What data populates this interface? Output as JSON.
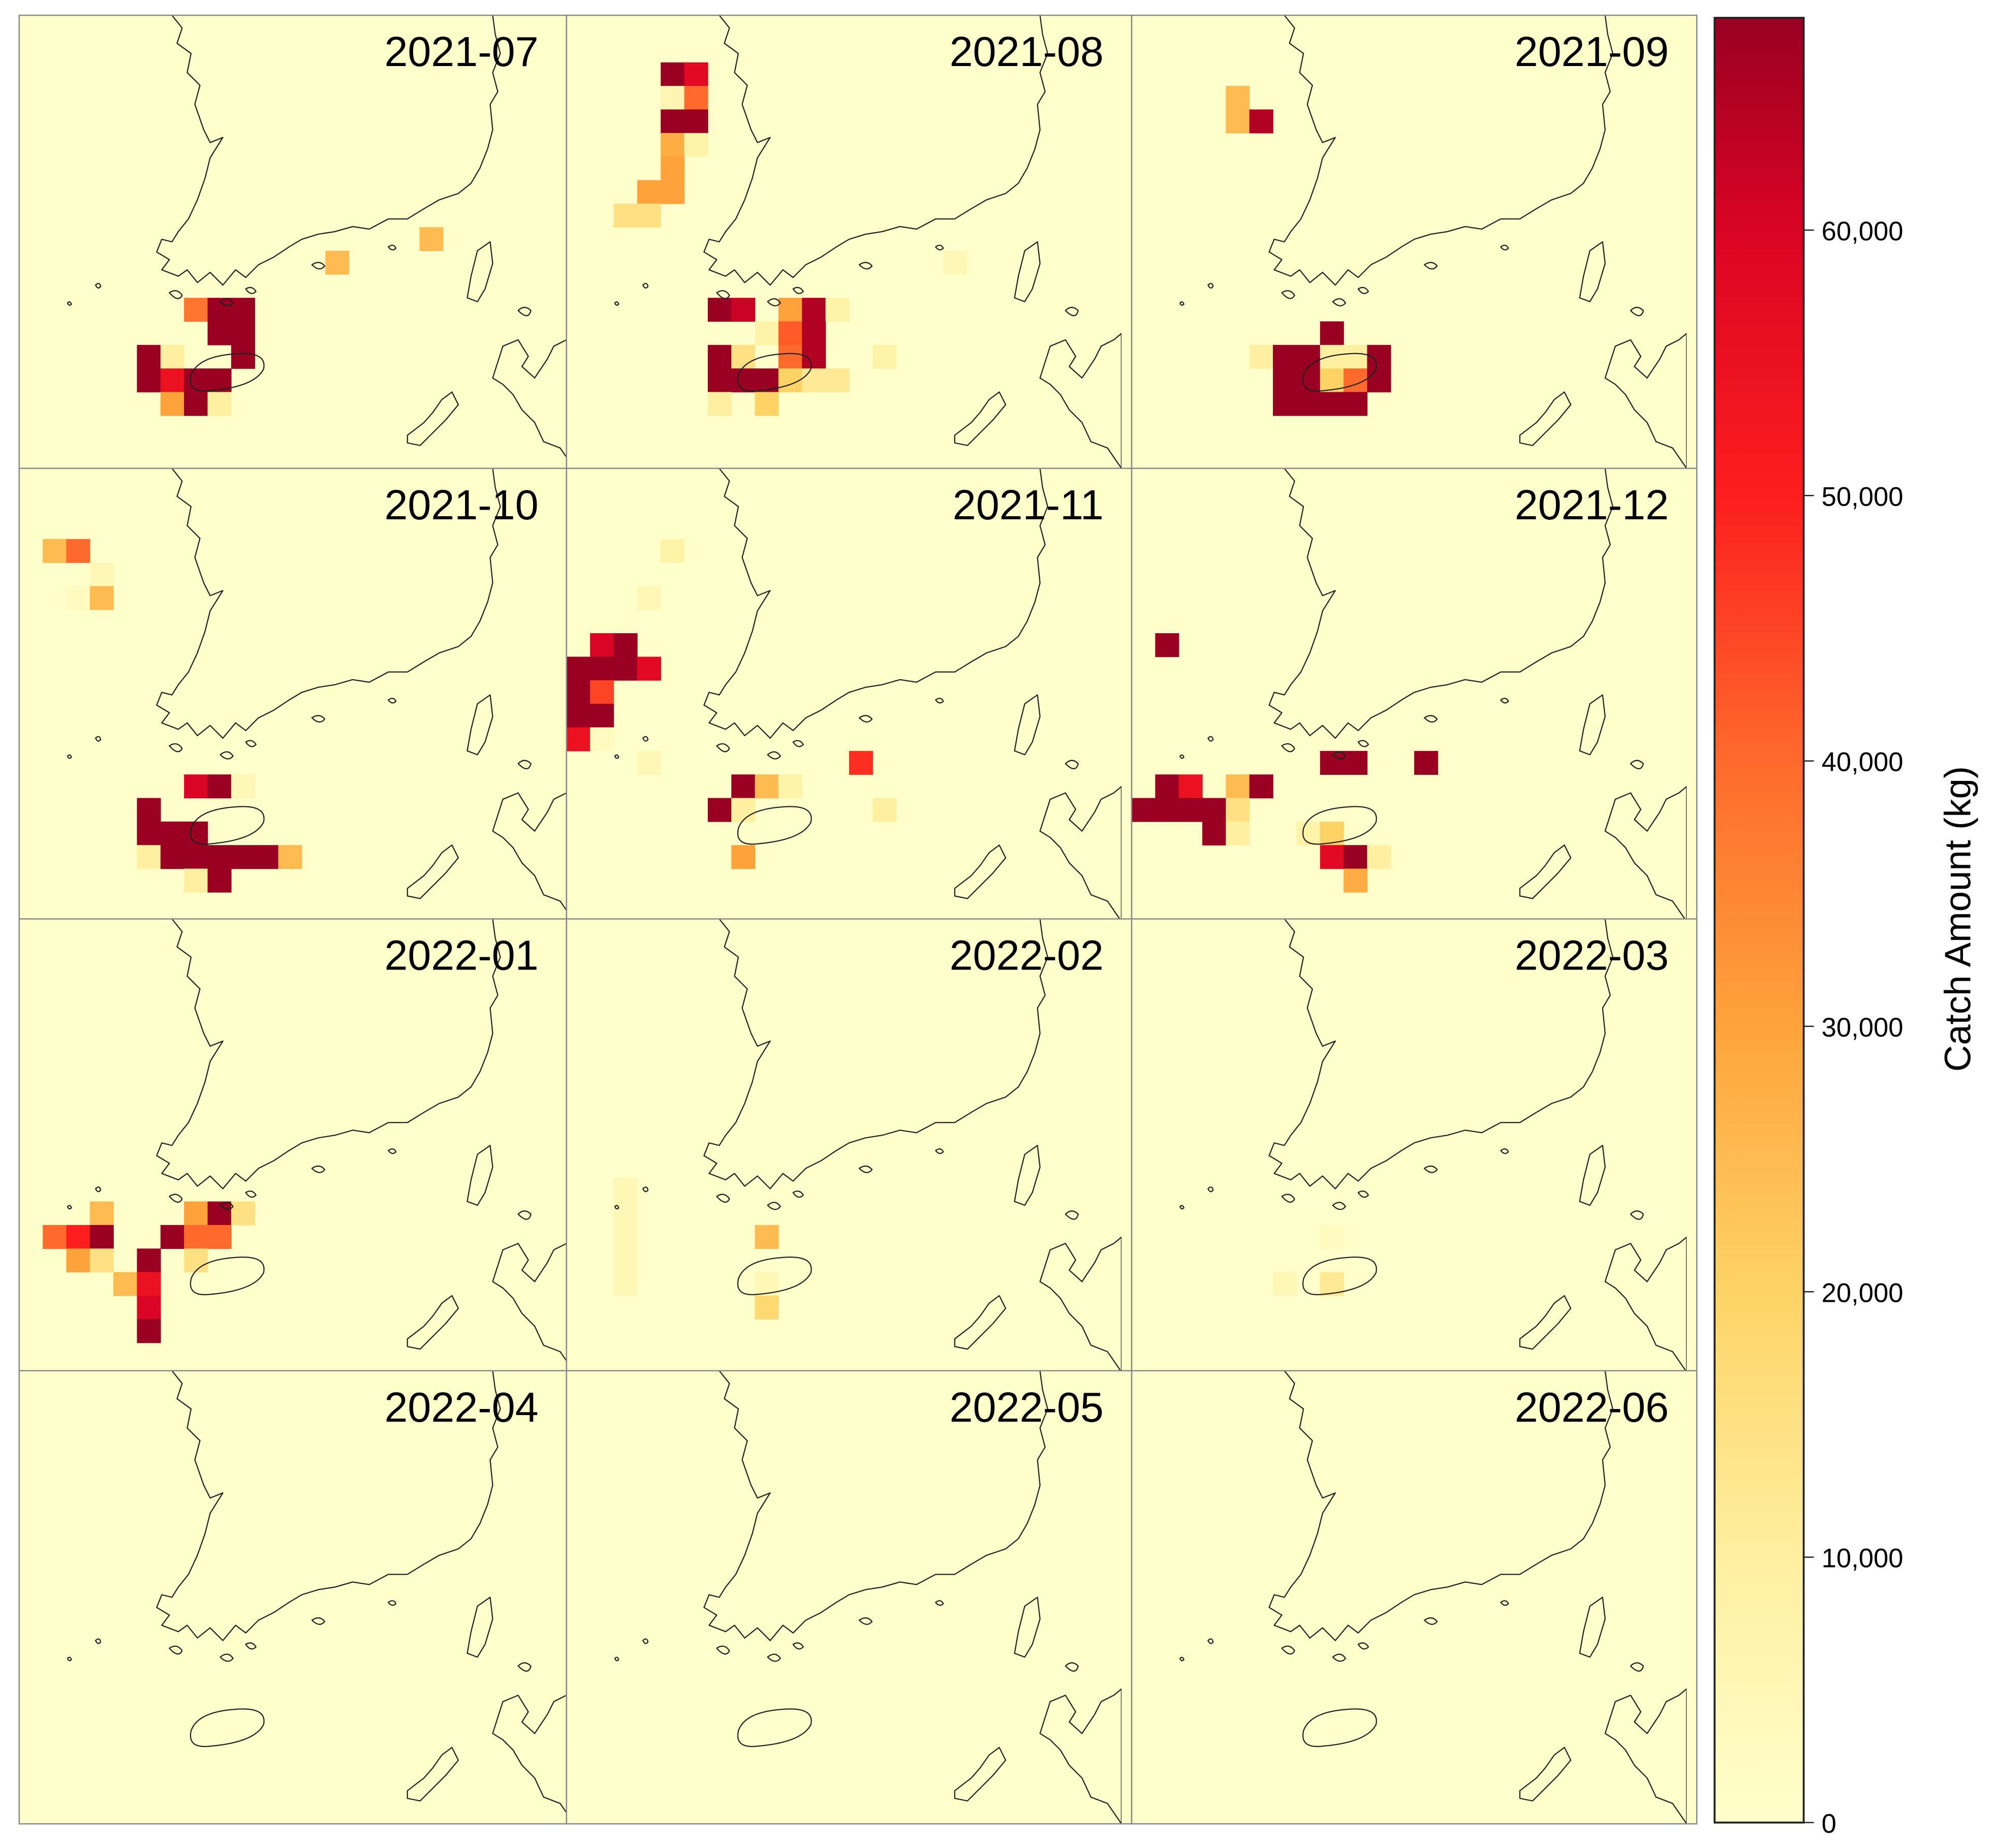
{
  "chart_data": {
    "type": "heatmap",
    "facet_layout": {
      "columns": 3,
      "rows": 4
    },
    "background_color": "#FFFFCC",
    "colorbar": {
      "title": "Catch Amount (kg)",
      "range": [
        0,
        68000
      ],
      "ticks": [
        0,
        10000,
        20000,
        30000,
        40000,
        50000,
        60000
      ],
      "tick_labels": [
        "0",
        "10,000",
        "20,000",
        "30,000",
        "40,000",
        "50,000",
        "60,000"
      ],
      "colorscale": [
        [
          0,
          "#FFFFCC"
        ],
        [
          10000,
          "#FFEFA0"
        ],
        [
          20000,
          "#FED366"
        ],
        [
          30000,
          "#FEA33C"
        ],
        [
          40000,
          "#FE6A2C"
        ],
        [
          50000,
          "#FC1E1E"
        ],
        [
          60000,
          "#DA0424"
        ],
        [
          68000,
          "#990022"
        ]
      ]
    },
    "cell_note": "cells are [grid column, grid row, catch kg]",
    "panels": [
      {
        "label": "2021-07",
        "cells": [
          [
            7,
            12,
            38000
          ],
          [
            8,
            12,
            68000
          ],
          [
            9,
            12,
            68000
          ],
          [
            8,
            13,
            68000
          ],
          [
            9,
            13,
            68000
          ],
          [
            5,
            14,
            68000
          ],
          [
            6,
            14,
            10000
          ],
          [
            9,
            14,
            68000
          ],
          [
            5,
            15,
            68000
          ],
          [
            6,
            15,
            55000
          ],
          [
            7,
            15,
            68000
          ],
          [
            8,
            15,
            68000
          ],
          [
            6,
            16,
            30000
          ],
          [
            7,
            16,
            68000
          ],
          [
            8,
            16,
            10000
          ],
          [
            13,
            10,
            25000
          ],
          [
            17,
            9,
            25000
          ]
        ]
      },
      {
        "label": "2021-08",
        "cells": [
          [
            4,
            2,
            68000
          ],
          [
            5,
            2,
            58000
          ],
          [
            4,
            3,
            6000
          ],
          [
            5,
            3,
            40000
          ],
          [
            4,
            4,
            68000
          ],
          [
            5,
            4,
            68000
          ],
          [
            4,
            5,
            28000
          ],
          [
            5,
            5,
            8000
          ],
          [
            4,
            6,
            30000
          ],
          [
            3,
            7,
            30000
          ],
          [
            4,
            7,
            30000
          ],
          [
            2,
            8,
            15000
          ],
          [
            3,
            8,
            15000
          ],
          [
            16,
            10,
            5000
          ],
          [
            6,
            12,
            68000
          ],
          [
            7,
            12,
            62000
          ],
          [
            9,
            12,
            30000
          ],
          [
            10,
            12,
            65000
          ],
          [
            11,
            12,
            8000
          ],
          [
            8,
            13,
            8000
          ],
          [
            9,
            13,
            42000
          ],
          [
            10,
            13,
            65000
          ],
          [
            6,
            14,
            68000
          ],
          [
            7,
            14,
            15000
          ],
          [
            9,
            14,
            40000
          ],
          [
            10,
            14,
            65000
          ],
          [
            13,
            14,
            8000
          ],
          [
            6,
            15,
            68000
          ],
          [
            7,
            15,
            68000
          ],
          [
            8,
            15,
            68000
          ],
          [
            9,
            15,
            20000
          ],
          [
            10,
            15,
            12000
          ],
          [
            11,
            15,
            12000
          ],
          [
            6,
            16,
            10000
          ],
          [
            8,
            16,
            20000
          ]
        ]
      },
      {
        "label": "2021-09",
        "cells": [
          [
            4,
            3,
            25000
          ],
          [
            4,
            4,
            25000
          ],
          [
            5,
            4,
            65000
          ],
          [
            8,
            13,
            68000
          ],
          [
            5,
            14,
            10000
          ],
          [
            6,
            14,
            68000
          ],
          [
            7,
            14,
            68000
          ],
          [
            8,
            14,
            10000
          ],
          [
            9,
            14,
            10000
          ],
          [
            10,
            14,
            68000
          ],
          [
            6,
            15,
            68000
          ],
          [
            7,
            15,
            68000
          ],
          [
            8,
            15,
            20000
          ],
          [
            9,
            15,
            40000
          ],
          [
            10,
            15,
            68000
          ],
          [
            6,
            16,
            68000
          ],
          [
            7,
            16,
            68000
          ],
          [
            8,
            16,
            68000
          ],
          [
            9,
            16,
            68000
          ]
        ]
      },
      {
        "label": "2021-10",
        "cells": [
          [
            1,
            3,
            25000
          ],
          [
            2,
            3,
            40000
          ],
          [
            3,
            4,
            5000
          ],
          [
            2,
            5,
            3000
          ],
          [
            3,
            5,
            25000
          ],
          [
            7,
            13,
            60000
          ],
          [
            8,
            13,
            68000
          ],
          [
            9,
            13,
            5000
          ],
          [
            5,
            14,
            68000
          ],
          [
            5,
            15,
            68000
          ],
          [
            6,
            15,
            68000
          ],
          [
            7,
            15,
            68000
          ],
          [
            5,
            16,
            10000
          ],
          [
            6,
            16,
            68000
          ],
          [
            7,
            16,
            68000
          ],
          [
            8,
            16,
            68000
          ],
          [
            9,
            16,
            68000
          ],
          [
            10,
            16,
            68000
          ],
          [
            11,
            16,
            25000
          ],
          [
            7,
            17,
            10000
          ],
          [
            8,
            17,
            68000
          ]
        ]
      },
      {
        "label": "2021-11",
        "cells": [
          [
            4,
            3,
            8000
          ],
          [
            3,
            5,
            5000
          ],
          [
            1,
            7,
            60000
          ],
          [
            2,
            7,
            68000
          ],
          [
            0,
            8,
            68000
          ],
          [
            1,
            8,
            68000
          ],
          [
            2,
            8,
            68000
          ],
          [
            3,
            8,
            58000
          ],
          [
            0,
            9,
            68000
          ],
          [
            1,
            9,
            45000
          ],
          [
            0,
            10,
            68000
          ],
          [
            1,
            10,
            68000
          ],
          [
            0,
            11,
            55000
          ],
          [
            1,
            11,
            3000
          ],
          [
            3,
            12,
            5000
          ],
          [
            12,
            12,
            48000
          ],
          [
            7,
            13,
            68000
          ],
          [
            8,
            13,
            25000
          ],
          [
            9,
            13,
            8000
          ],
          [
            6,
            14,
            68000
          ],
          [
            7,
            14,
            10000
          ],
          [
            13,
            14,
            10000
          ],
          [
            7,
            16,
            30000
          ]
        ]
      },
      {
        "label": "2021-12",
        "cells": [
          [
            1,
            7,
            68000
          ],
          [
            8,
            12,
            68000
          ],
          [
            9,
            12,
            68000
          ],
          [
            12,
            12,
            68000
          ],
          [
            1,
            13,
            68000
          ],
          [
            2,
            13,
            55000
          ],
          [
            4,
            13,
            25000
          ],
          [
            5,
            13,
            68000
          ],
          [
            0,
            14,
            68000
          ],
          [
            1,
            14,
            68000
          ],
          [
            2,
            14,
            68000
          ],
          [
            3,
            14,
            68000
          ],
          [
            4,
            14,
            15000
          ],
          [
            3,
            15,
            68000
          ],
          [
            4,
            15,
            10000
          ],
          [
            7,
            15,
            8000
          ],
          [
            8,
            15,
            20000
          ],
          [
            8,
            16,
            58000
          ],
          [
            9,
            16,
            68000
          ],
          [
            10,
            16,
            10000
          ],
          [
            9,
            17,
            28000
          ]
        ]
      },
      {
        "label": "2022-01",
        "cells": [
          [
            3,
            12,
            25000
          ],
          [
            7,
            12,
            30000
          ],
          [
            8,
            12,
            68000
          ],
          [
            9,
            12,
            15000
          ],
          [
            1,
            13,
            40000
          ],
          [
            2,
            13,
            50000
          ],
          [
            3,
            13,
            68000
          ],
          [
            6,
            13,
            68000
          ],
          [
            7,
            13,
            40000
          ],
          [
            8,
            13,
            40000
          ],
          [
            2,
            14,
            30000
          ],
          [
            3,
            14,
            15000
          ],
          [
            5,
            14,
            68000
          ],
          [
            7,
            14,
            15000
          ],
          [
            4,
            15,
            25000
          ],
          [
            5,
            15,
            55000
          ],
          [
            5,
            16,
            60000
          ],
          [
            5,
            17,
            68000
          ]
        ]
      },
      {
        "label": "2022-02",
        "cells": [
          [
            2,
            11,
            5000
          ],
          [
            2,
            12,
            5000
          ],
          [
            2,
            13,
            5000
          ],
          [
            2,
            14,
            5000
          ],
          [
            2,
            15,
            5000
          ],
          [
            8,
            13,
            25000
          ],
          [
            8,
            15,
            5000
          ],
          [
            8,
            16,
            18000
          ]
        ]
      },
      {
        "label": "2022-03",
        "cells": [
          [
            6,
            15,
            5000
          ],
          [
            8,
            13,
            3000
          ],
          [
            8,
            15,
            12000
          ]
        ]
      },
      {
        "label": "2022-04",
        "cells": []
      },
      {
        "label": "2022-05",
        "cells": []
      },
      {
        "label": "2022-06",
        "cells": []
      }
    ]
  }
}
